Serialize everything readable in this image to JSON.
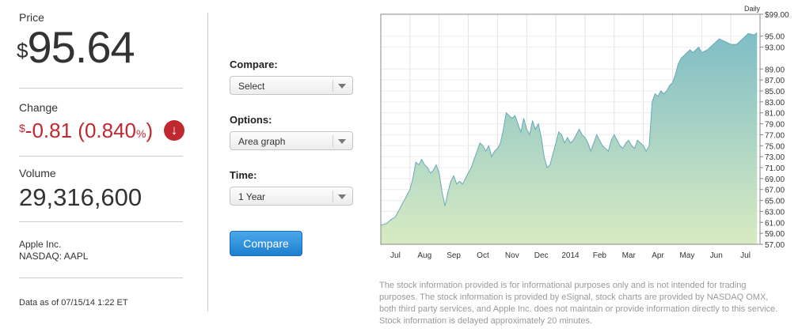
{
  "quote": {
    "price_label": "Price",
    "currency_symbol": "$",
    "price": "95.64",
    "change_label": "Change",
    "change_value": "-0.81",
    "change_percent_open": "(0.840",
    "percent_sign": "%",
    "change_percent_close": ")",
    "change_color": "#c0282f",
    "volume_label": "Volume",
    "volume": "29,316,600",
    "company_name": "Apple Inc.",
    "exchange": "NASDAQ: AAPL",
    "as_of": "Data as of 07/15/14 1:22 ET"
  },
  "controls": {
    "compare_label": "Compare:",
    "compare_value": "Select",
    "options_label": "Options:",
    "options_value": "Area graph",
    "time_label": "Time:",
    "time_value": "1 Year",
    "compare_button": "Compare",
    "button_color": "#2a8ad8"
  },
  "chart_data": {
    "type": "area",
    "interval_label": "Daily",
    "ylim": [
      57.0,
      99.0
    ],
    "y_tick_labels": [
      "$99.00",
      "95.00",
      "93.00",
      "89.00",
      "87.00",
      "85.00",
      "83.00",
      "81.00",
      "79.00",
      "77.00",
      "75.00",
      "73.00",
      "71.00",
      "69.00",
      "67.00",
      "65.00",
      "63.00",
      "61.00",
      "59.00",
      "57.00"
    ],
    "y_tick_values": [
      99,
      95,
      93,
      89,
      87,
      85,
      83,
      81,
      79,
      77,
      75,
      73,
      71,
      69,
      67,
      65,
      63,
      61,
      59,
      57
    ],
    "x_tick_labels": [
      "Jul",
      "Aug",
      "Sep",
      "Oct",
      "Nov",
      "Dec",
      "2014",
      "Feb",
      "Mar",
      "Apr",
      "May",
      "Jun",
      "Jul"
    ],
    "x_tick_positions": [
      0.5,
      1.5,
      2.5,
      3.5,
      4.5,
      5.5,
      6.5,
      7.5,
      8.5,
      9.5,
      10.5,
      11.5,
      12.5
    ],
    "grid": true,
    "fill_top_color": "#7fbdc6",
    "fill_bottom_color": "#d8ebc2",
    "line_color": "#6aa9b8",
    "x": [
      0.0,
      0.2,
      0.35,
      0.5,
      0.7,
      0.9,
      1.0,
      1.1,
      1.2,
      1.3,
      1.4,
      1.5,
      1.6,
      1.7,
      1.8,
      1.9,
      2.0,
      2.1,
      2.2,
      2.3,
      2.4,
      2.5,
      2.6,
      2.7,
      2.8,
      2.9,
      3.0,
      3.1,
      3.2,
      3.3,
      3.4,
      3.5,
      3.6,
      3.7,
      3.8,
      3.9,
      4.0,
      4.1,
      4.2,
      4.3,
      4.4,
      4.5,
      4.6,
      4.7,
      4.8,
      4.9,
      5.0,
      5.1,
      5.2,
      5.3,
      5.4,
      5.5,
      5.6,
      5.7,
      5.8,
      5.9,
      6.0,
      6.1,
      6.2,
      6.3,
      6.4,
      6.5,
      6.6,
      6.7,
      6.8,
      6.9,
      7.0,
      7.1,
      7.2,
      7.3,
      7.4,
      7.5,
      7.6,
      7.7,
      7.8,
      7.9,
      8.0,
      8.1,
      8.2,
      8.3,
      8.4,
      8.5,
      8.6,
      8.7,
      8.8,
      8.9,
      9.0,
      9.1,
      9.2,
      9.3,
      9.4,
      9.5,
      9.6,
      9.7,
      9.8,
      9.9,
      10.0,
      10.1,
      10.2,
      10.3,
      10.4,
      10.5,
      10.6,
      10.7,
      10.8,
      10.9,
      11.0,
      11.2,
      11.4,
      11.6,
      11.8,
      12.0,
      12.2,
      12.4,
      12.6,
      12.8,
      12.9
    ],
    "values": [
      60.5,
      60.8,
      61.5,
      62.0,
      64.0,
      66.0,
      67.0,
      69.0,
      72.0,
      71.5,
      72.5,
      71.5,
      71.0,
      70.0,
      70.5,
      71.5,
      70.0,
      66.5,
      64.0,
      66.5,
      68.5,
      69.5,
      68.0,
      68.5,
      68.0,
      69.0,
      70.0,
      71.0,
      72.5,
      74.0,
      75.5,
      75.0,
      74.0,
      75.0,
      73.0,
      74.0,
      74.5,
      75.5,
      78.0,
      81.0,
      80.5,
      80.0,
      80.5,
      79.0,
      77.5,
      80.0,
      78.0,
      77.0,
      79.5,
      78.0,
      79.0,
      76.5,
      73.0,
      71.0,
      71.5,
      73.5,
      75.5,
      77.5,
      77.0,
      75.5,
      76.5,
      75.5,
      76.0,
      77.0,
      78.0,
      77.0,
      76.5,
      75.5,
      74.0,
      75.5,
      77.0,
      76.0,
      75.0,
      74.5,
      74.0,
      76.0,
      77.0,
      76.0,
      75.0,
      74.5,
      75.5,
      76.0,
      75.0,
      74.5,
      76.0,
      75.5,
      75.0,
      74.0,
      75.0,
      83.0,
      84.5,
      84.0,
      85.0,
      84.5,
      85.0,
      86.0,
      86.5,
      88.0,
      90.0,
      91.0,
      91.5,
      92.0,
      92.5,
      92.0,
      92.5,
      93.0,
      92.0,
      92.5,
      93.5,
      94.5,
      94.0,
      93.5,
      93.5,
      94.5,
      95.5,
      95.2,
      95.64
    ]
  },
  "disclaimer": "The stock information provided is for informational purposes only and is not intended for trading purposes. The stock information is provided by eSignal, stock charts are provided by NASDAQ OMX, both third party services, and Apple Inc. does not maintain or provide information directly to this service. Stock information is delayed approximately 20 minutes."
}
